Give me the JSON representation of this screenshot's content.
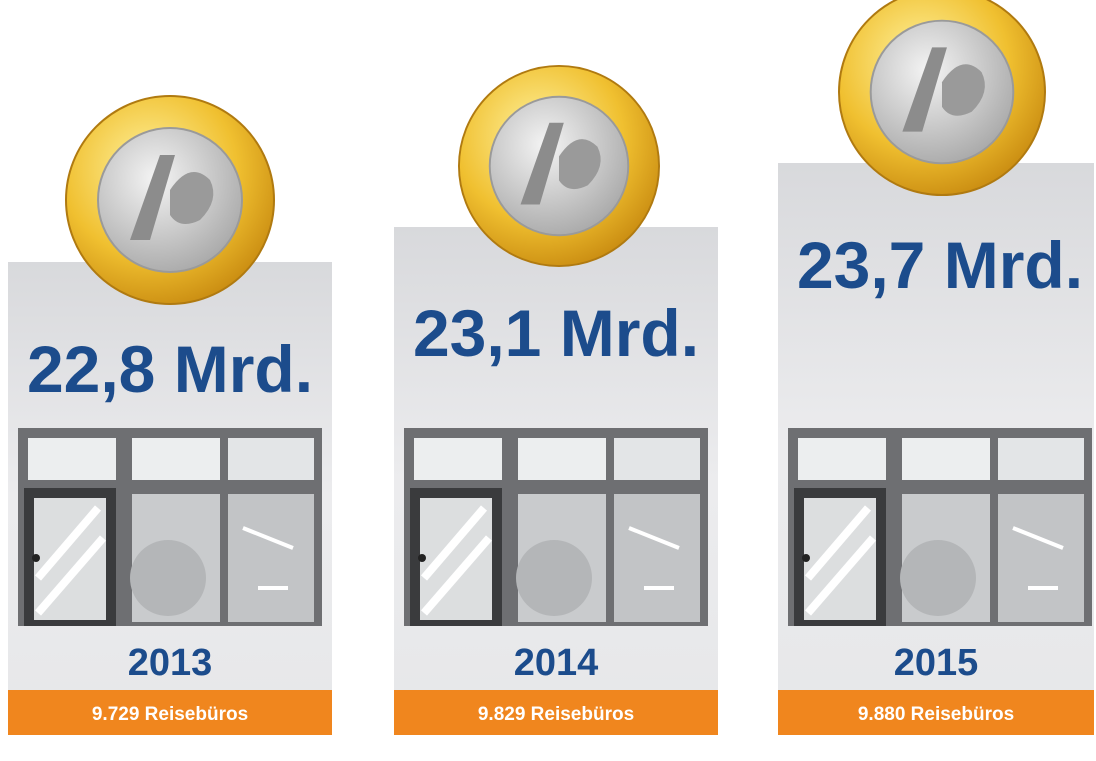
{
  "panels": [
    {
      "amount": "22,8 Mrd.",
      "year": "2013",
      "offices": "9.729 Reisebüros"
    },
    {
      "amount": "23,1 Mrd.",
      "year": "2014",
      "offices": "9.829 Reisebüros"
    },
    {
      "amount": "23,7 Mrd.",
      "year": "2015",
      "offices": "9.880 Reisebüros"
    }
  ]
}
